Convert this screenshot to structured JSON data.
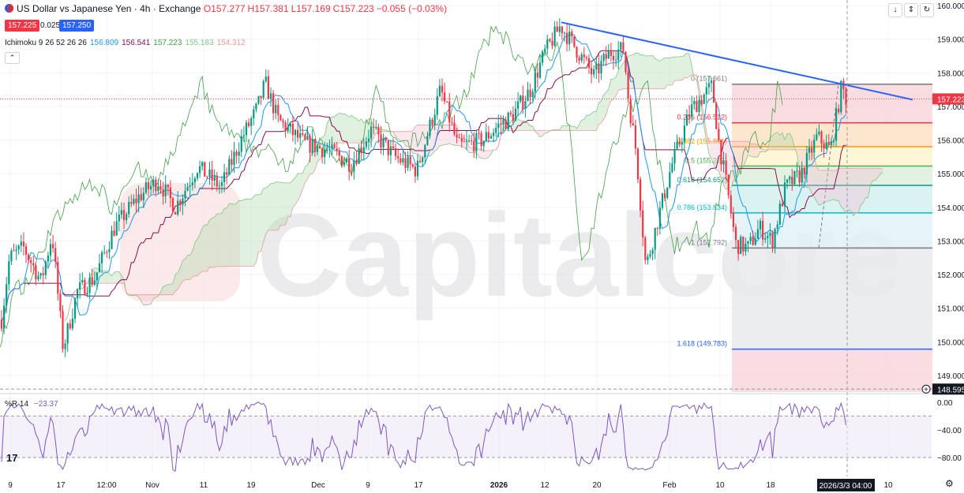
{
  "header": {
    "title": "US Dollar vs Japanese Yen · 4h · Exchange",
    "open": "O157.277",
    "high": "H157.381",
    "low": "L157.169",
    "close": "C157.223",
    "change": "−0.055 (−0.03%)",
    "bid": "157.225",
    "spread": "0.025",
    "ask": "157.250"
  },
  "ichimoku": {
    "label": "Ichimoku 9 26 52 26 26",
    "v1": "156.809",
    "v2": "156.541",
    "v3": "157.223",
    "v4": "155.183",
    "v5": "154.312"
  },
  "rsi": {
    "label": "%R 14",
    "value": "−23.37"
  },
  "watermark": "Capitalcore",
  "toolbar": {
    "down_icon": "↓",
    "expand_icon": "⇕",
    "refresh_icon": "↻"
  },
  "colors": {
    "bull": "#089981",
    "bear": "#f23645",
    "trend": "#2962ff",
    "cloud_bull": "#a5d6a7",
    "cloud_bear": "#f8bbd0",
    "tenkan": "#2196f3",
    "kijun": "#880e4f",
    "chikou": "#43a047",
    "wr": "#7e57c2"
  },
  "chart_data": {
    "type": "candlestick",
    "symbol": "USDJPY",
    "timeframe": "4h",
    "y_axis": {
      "ticks": [
        "160.000",
        "159.000",
        "158.000",
        "157.000",
        "156.000",
        "155.000",
        "154.000",
        "153.000",
        "152.000",
        "151.000",
        "150.000",
        "149.000"
      ],
      "range": [
        148.4,
        160.1
      ]
    },
    "x_axis": {
      "ticks": [
        "9",
        "17",
        "12:00",
        "Nov",
        "11",
        "19",
        "Dec",
        "9",
        "17",
        "2026",
        "12",
        "20",
        "Feb",
        "10",
        "18",
        "10"
      ],
      "cursor_label": "2026/3/3  04:00"
    },
    "price_labels": {
      "last": "157.223",
      "cursor": "148.595"
    },
    "price_path": [
      [
        0,
        150.3
      ],
      [
        12,
        152.5
      ],
      [
        30,
        152.8
      ],
      [
        52,
        151.8
      ],
      [
        66,
        153.2
      ],
      [
        80,
        149.8
      ],
      [
        98,
        151.5
      ],
      [
        120,
        151.9
      ],
      [
        145,
        153.4
      ],
      [
        175,
        154.3
      ],
      [
        200,
        154.8
      ],
      [
        222,
        154.0
      ],
      [
        250,
        155.2
      ],
      [
        280,
        154.6
      ],
      [
        305,
        156.0
      ],
      [
        325,
        156.9
      ],
      [
        336,
        157.7
      ],
      [
        352,
        156.6
      ],
      [
        385,
        155.9
      ],
      [
        415,
        155.7
      ],
      [
        445,
        155.3
      ],
      [
        470,
        156.3
      ],
      [
        500,
        155.5
      ],
      [
        528,
        155.1
      ],
      [
        558,
        157.5
      ],
      [
        580,
        155.8
      ],
      [
        612,
        156.0
      ],
      [
        630,
        156.4
      ],
      [
        648,
        156.7
      ],
      [
        672,
        157.5
      ],
      [
        690,
        158.6
      ],
      [
        710,
        159.4
      ],
      [
        730,
        158.7
      ],
      [
        752,
        157.9
      ],
      [
        772,
        158.6
      ],
      [
        790,
        158.7
      ],
      [
        796,
        157.2
      ],
      [
        806,
        155.6
      ],
      [
        818,
        152.2
      ],
      [
        835,
        153.8
      ],
      [
        850,
        155.2
      ],
      [
        875,
        156.9
      ],
      [
        890,
        157.3
      ],
      [
        902,
        157.6
      ],
      [
        910,
        156.0
      ],
      [
        922,
        154.4
      ],
      [
        932,
        152.9
      ],
      [
        948,
        152.8
      ],
      [
        962,
        153.4
      ],
      [
        978,
        153.0
      ],
      [
        995,
        154.6
      ],
      [
        1015,
        155.0
      ],
      [
        1035,
        156.1
      ],
      [
        1052,
        155.7
      ],
      [
        1066,
        157.6
      ],
      [
        1072,
        157.2
      ]
    ],
    "trendline": {
      "from": [
        "Jan 12",
        159.5
      ],
      "to": [
        "Mar 6",
        157.2
      ]
    },
    "fibonacci": [
      {
        "ratio": "0",
        "price": 157.661,
        "label": "0 (157.661)",
        "fill": "#f8d7da",
        "line": "#787b86"
      },
      {
        "ratio": "0.236",
        "price": 156.512,
        "label": "0.236 (156.512)",
        "fill": "#fde2c5",
        "line": "#f23645"
      },
      {
        "ratio": "0.382",
        "price": 155.801,
        "label": "0.382 (155.801)",
        "fill": "#fff4d1",
        "line": "#ff9800"
      },
      {
        "ratio": "0.5",
        "price": 155.227,
        "label": "0.5 (155.227)",
        "fill": "#dcefdd",
        "line": "#4caf50"
      },
      {
        "ratio": "0.618",
        "price": 154.652,
        "label": "0.618 (154.652)",
        "fill": "#d4f0ee",
        "line": "#089981"
      },
      {
        "ratio": "0.786",
        "price": 153.834,
        "label": "0.786 (153.834)",
        "fill": "#e0f2f7",
        "line": "#00bcd4"
      },
      {
        "ratio": "1",
        "price": 152.792,
        "label": "1 (152.792)",
        "fill": "#e9eaeb",
        "line": "#787b86"
      },
      {
        "ratio": "1.618",
        "price": 149.783,
        "label": "1.618 (149.783)",
        "fill": "#d6e2fb",
        "line": "#2962ff"
      }
    ],
    "williams_r": {
      "ticks": [
        "0.00",
        "−40.00",
        "−80.00"
      ],
      "range": [
        -100,
        0
      ],
      "bands": [
        -20,
        -80
      ]
    }
  }
}
